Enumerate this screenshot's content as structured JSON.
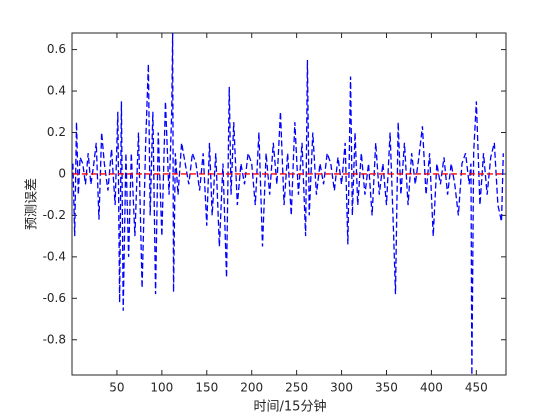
{
  "chart_data": {
    "type": "line",
    "xlabel": "时间/15分钟",
    "ylabel": "预测误差",
    "xlim": [
      0,
      483
    ],
    "ylim": [
      -0.97,
      0.68
    ],
    "xticks": [
      50,
      100,
      150,
      200,
      250,
      300,
      350,
      400,
      450
    ],
    "yticks": [
      -0.8,
      -0.6,
      -0.4,
      -0.2,
      0,
      0.2,
      0.4,
      0.6
    ],
    "grid": false,
    "series": [
      {
        "color": "#0000ff",
        "dash": "6 3",
        "x": [
          1,
          3,
          5,
          7,
          9,
          12,
          15,
          18,
          21,
          24,
          27,
          30,
          33,
          36,
          40,
          44,
          48,
          51,
          53,
          55,
          57,
          60,
          63,
          66,
          70,
          74,
          78,
          82,
          85,
          87,
          90,
          93,
          96,
          100,
          104,
          108,
          111,
          112,
          113,
          115,
          118,
          122,
          126,
          130,
          134,
          138,
          142,
          146,
          150,
          153,
          156,
          160,
          164,
          168,
          172,
          175,
          177,
          180,
          184,
          188,
          192,
          196,
          200,
          204,
          208,
          212,
          216,
          220,
          224,
          228,
          232,
          236,
          240,
          244,
          248,
          252,
          256,
          260,
          262,
          264,
          268,
          272,
          276,
          280,
          284,
          288,
          292,
          296,
          300,
          304,
          307,
          310,
          312,
          315,
          318,
          322,
          326,
          330,
          334,
          338,
          342,
          346,
          350,
          354,
          358,
          360,
          363,
          366,
          370,
          374,
          378,
          382,
          386,
          390,
          394,
          398,
          402,
          406,
          410,
          414,
          418,
          422,
          426,
          430,
          434,
          438,
          442,
          444,
          445,
          447,
          450,
          454,
          458,
          462,
          466,
          470,
          474,
          478,
          480
        ],
        "values": [
          0.05,
          -0.3,
          0.25,
          -0.1,
          0.08,
          0.05,
          -0.05,
          0.1,
          -0.05,
          0.04,
          0.15,
          -0.22,
          0.2,
          0.05,
          -0.08,
          0.12,
          -0.15,
          0.3,
          -0.62,
          0.35,
          -0.66,
          0.1,
          -0.4,
          0.1,
          -0.3,
          0.2,
          -0.55,
          0.15,
          0.53,
          -0.2,
          0.3,
          -0.58,
          0.2,
          -0.3,
          0.35,
          -0.1,
          0.3,
          0.68,
          -0.57,
          0.1,
          -0.1,
          0.15,
          0.05,
          -0.05,
          0.1,
          0.05,
          -0.08,
          0.1,
          -0.25,
          0.15,
          -0.2,
          0.1,
          -0.35,
          0.05,
          -0.5,
          0.42,
          -0.1,
          0.25,
          -0.15,
          0.05,
          -0.05,
          0.1,
          0.05,
          -0.15,
          0.2,
          -0.35,
          0.1,
          -0.1,
          0.15,
          -0.05,
          0.3,
          -0.15,
          0.1,
          -0.2,
          0.25,
          -0.1,
          0.15,
          -0.3,
          0.55,
          -0.2,
          0.2,
          -0.1,
          0.05,
          -0.05,
          0.1,
          0.05,
          -0.08,
          0.08,
          -0.05,
          0.15,
          -0.34,
          0.47,
          -0.2,
          0.2,
          -0.15,
          0.1,
          -0.1,
          0.05,
          -0.2,
          0.15,
          -0.1,
          0.05,
          -0.15,
          0.2,
          -0.3,
          -0.58,
          0.25,
          -0.1,
          0.15,
          -0.15,
          0.1,
          -0.05,
          0.08,
          0.23,
          -0.1,
          0.1,
          -0.3,
          0.05,
          -0.05,
          0.08,
          -0.1,
          0.05,
          -0.05,
          -0.2,
          0.05,
          0.1,
          -0.05,
          0.05,
          -0.97,
          0.1,
          0.35,
          -0.15,
          0.1,
          -0.1,
          0.08,
          0.15,
          -0.15,
          -0.23,
          0.1
        ]
      },
      {
        "color": "#ff0000",
        "dash": "6 3",
        "x": [
          1,
          480
        ],
        "values": [
          0,
          0
        ]
      }
    ]
  }
}
